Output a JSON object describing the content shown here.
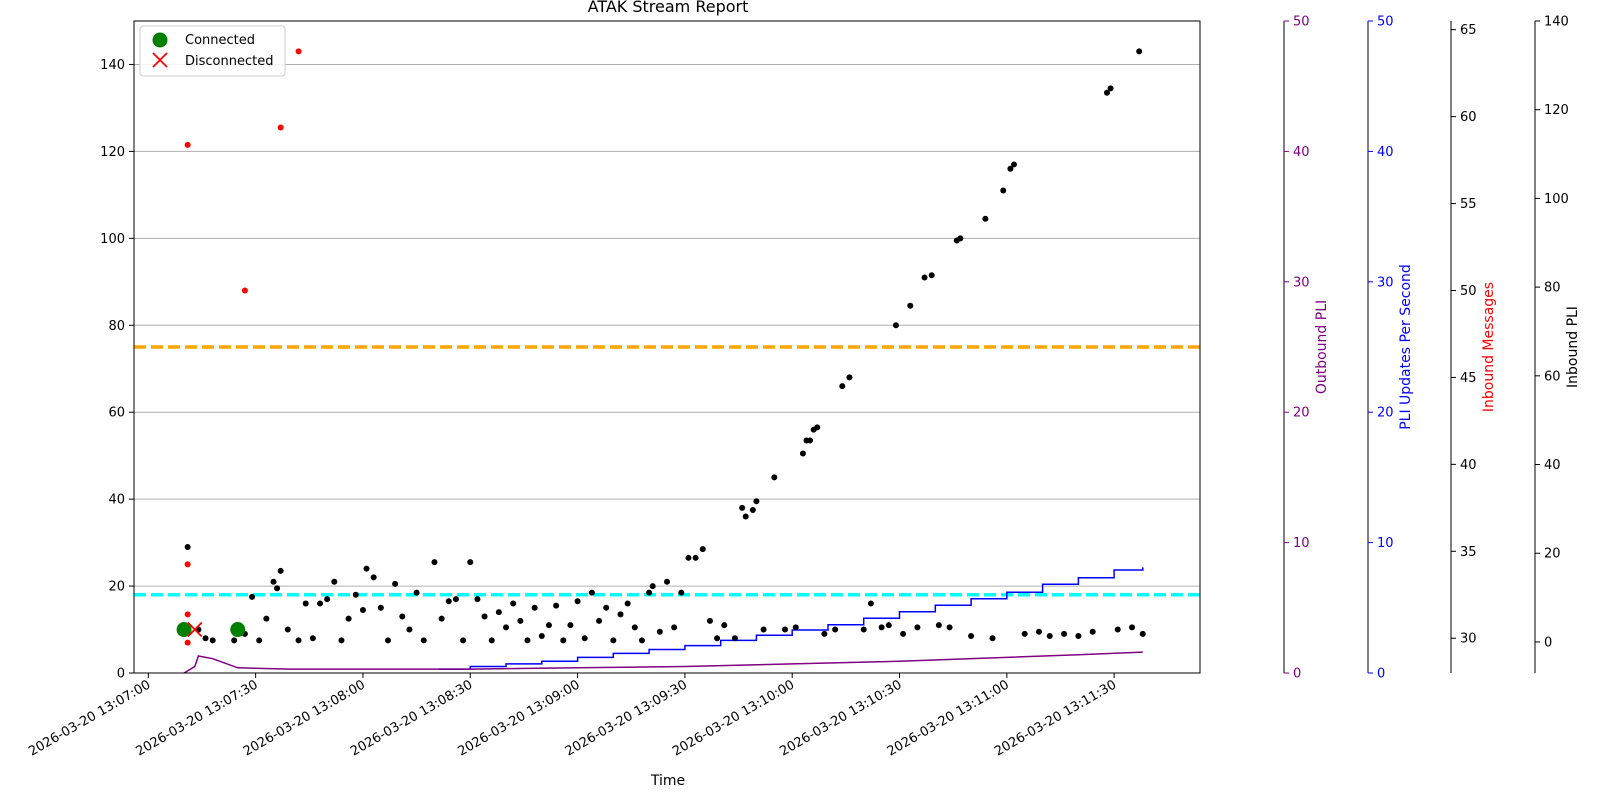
{
  "chart_data": {
    "type": "scatter",
    "title": "ATAK Stream Report",
    "xlabel": "Time",
    "ylabel": "",
    "x_ticks": [
      "2026-03-20 13:07:00",
      "2026-03-20 13:07:30",
      "2026-03-20 13:08:00",
      "2026-03-20 13:08:30",
      "2026-03-20 13:09:00",
      "2026-03-20 13:09:30",
      "2026-03-20 13:10:00",
      "2026-03-20 13:10:30",
      "2026-03-20 13:11:00",
      "2026-03-20 13:11:30"
    ],
    "xlim": [
      "2026-03-20 13:06:56",
      "2026-03-20 13:11:54"
    ],
    "ylim": [
      0,
      150
    ],
    "y_ticks": [
      0,
      20,
      40,
      60,
      80,
      100,
      120,
      140
    ],
    "grid": "horizontal",
    "legend": {
      "placement": "top-left",
      "entries": [
        {
          "label": "Connected",
          "marker": "circle",
          "color": "#008000"
        },
        {
          "label": "Disconnected",
          "marker": "x",
          "color": "#ff0000"
        }
      ]
    },
    "reference_lines": [
      {
        "y": 75,
        "color": "#ffa500",
        "style": "dashed"
      },
      {
        "y": 18,
        "color": "#00ffff",
        "style": "dashed"
      }
    ],
    "connection_events": [
      {
        "x": "2026-03-20 13:07:10",
        "y": 10,
        "state": "Connected"
      },
      {
        "x": "2026-03-20 13:07:13",
        "y": 10,
        "state": "Disconnected"
      },
      {
        "x": "2026-03-20 13:07:25",
        "y": 10,
        "state": "Connected"
      }
    ],
    "series": [
      {
        "color": "#000000",
        "marker": "dot",
        "points": [
          [
            "2026-03-20 13:07:11",
            29
          ],
          [
            "2026-03-20 13:07:14",
            10
          ],
          [
            "2026-03-20 13:07:16",
            8
          ],
          [
            "2026-03-20 13:07:18",
            7.5
          ],
          [
            "2026-03-20 13:07:24",
            7.5
          ],
          [
            "2026-03-20 13:07:27",
            9
          ],
          [
            "2026-03-20 13:07:29",
            17.5
          ],
          [
            "2026-03-20 13:07:31",
            7.5
          ],
          [
            "2026-03-20 13:07:33",
            12.5
          ],
          [
            "2026-03-20 13:07:35",
            21
          ],
          [
            "2026-03-20 13:07:36",
            19.5
          ],
          [
            "2026-03-20 13:07:37",
            23.5
          ],
          [
            "2026-03-20 13:07:39",
            10
          ],
          [
            "2026-03-20 13:07:42",
            7.5
          ],
          [
            "2026-03-20 13:07:44",
            16
          ],
          [
            "2026-03-20 13:07:46",
            8
          ],
          [
            "2026-03-20 13:07:48",
            16
          ],
          [
            "2026-03-20 13:07:50",
            17
          ],
          [
            "2026-03-20 13:07:52",
            21
          ],
          [
            "2026-03-20 13:07:54",
            7.5
          ],
          [
            "2026-03-20 13:07:56",
            12.5
          ],
          [
            "2026-03-20 13:07:58",
            18
          ],
          [
            "2026-03-20 13:08:00",
            14.5
          ],
          [
            "2026-03-20 13:08:01",
            24
          ],
          [
            "2026-03-20 13:08:03",
            22
          ],
          [
            "2026-03-20 13:08:05",
            15
          ],
          [
            "2026-03-20 13:08:07",
            7.5
          ],
          [
            "2026-03-20 13:08:09",
            20.5
          ],
          [
            "2026-03-20 13:08:11",
            13
          ],
          [
            "2026-03-20 13:08:13",
            10
          ],
          [
            "2026-03-20 13:08:15",
            18.5
          ],
          [
            "2026-03-20 13:08:17",
            7.5
          ],
          [
            "2026-03-20 13:08:20",
            25.5
          ],
          [
            "2026-03-20 13:08:22",
            12.5
          ],
          [
            "2026-03-20 13:08:24",
            16.5
          ],
          [
            "2026-03-20 13:08:26",
            17
          ],
          [
            "2026-03-20 13:08:28",
            7.5
          ],
          [
            "2026-03-20 13:08:30",
            25.5
          ],
          [
            "2026-03-20 13:08:32",
            17
          ],
          [
            "2026-03-20 13:08:34",
            13
          ],
          [
            "2026-03-20 13:08:36",
            7.5
          ],
          [
            "2026-03-20 13:08:38",
            14
          ],
          [
            "2026-03-20 13:08:40",
            10.5
          ],
          [
            "2026-03-20 13:08:42",
            16
          ],
          [
            "2026-03-20 13:08:44",
            12
          ],
          [
            "2026-03-20 13:08:46",
            7.5
          ],
          [
            "2026-03-20 13:08:48",
            15
          ],
          [
            "2026-03-20 13:08:50",
            8.5
          ],
          [
            "2026-03-20 13:08:52",
            11
          ],
          [
            "2026-03-20 13:08:54",
            15.5
          ],
          [
            "2026-03-20 13:08:56",
            7.5
          ],
          [
            "2026-03-20 13:08:58",
            11
          ],
          [
            "2026-03-20 13:09:00",
            16.5
          ],
          [
            "2026-03-20 13:09:02",
            8
          ],
          [
            "2026-03-20 13:09:04",
            18.5
          ],
          [
            "2026-03-20 13:09:06",
            12
          ],
          [
            "2026-03-20 13:09:08",
            15
          ],
          [
            "2026-03-20 13:09:10",
            7.5
          ],
          [
            "2026-03-20 13:09:12",
            13.5
          ],
          [
            "2026-03-20 13:09:14",
            16
          ],
          [
            "2026-03-20 13:09:16",
            10.5
          ],
          [
            "2026-03-20 13:09:18",
            7.5
          ],
          [
            "2026-03-20 13:09:20",
            18.5
          ],
          [
            "2026-03-20 13:09:21",
            20
          ],
          [
            "2026-03-20 13:09:23",
            9.5
          ],
          [
            "2026-03-20 13:09:25",
            21
          ],
          [
            "2026-03-20 13:09:27",
            10.5
          ],
          [
            "2026-03-20 13:09:29",
            18.5
          ],
          [
            "2026-03-20 13:09:31",
            26.5
          ],
          [
            "2026-03-20 13:09:33",
            26.5
          ],
          [
            "2026-03-20 13:09:35",
            28.5
          ],
          [
            "2026-03-20 13:09:37",
            12
          ],
          [
            "2026-03-20 13:09:39",
            8
          ],
          [
            "2026-03-20 13:09:41",
            11
          ],
          [
            "2026-03-20 13:09:44",
            8
          ],
          [
            "2026-03-20 13:09:46",
            38
          ],
          [
            "2026-03-20 13:09:47",
            36
          ],
          [
            "2026-03-20 13:09:49",
            37.5
          ],
          [
            "2026-03-20 13:09:50",
            39.5
          ],
          [
            "2026-03-20 13:09:52",
            10
          ],
          [
            "2026-03-20 13:09:55",
            45
          ],
          [
            "2026-03-20 13:09:58",
            10
          ],
          [
            "2026-03-20 13:10:01",
            10.5
          ],
          [
            "2026-03-20 13:10:03",
            50.5
          ],
          [
            "2026-03-20 13:10:04",
            53.5
          ],
          [
            "2026-03-20 13:10:05",
            53.5
          ],
          [
            "2026-03-20 13:10:06",
            56
          ],
          [
            "2026-03-20 13:10:07",
            56.5
          ],
          [
            "2026-03-20 13:10:09",
            9
          ],
          [
            "2026-03-20 13:10:12",
            10
          ],
          [
            "2026-03-20 13:10:14",
            66
          ],
          [
            "2026-03-20 13:10:16",
            68
          ],
          [
            "2026-03-20 13:10:20",
            10
          ],
          [
            "2026-03-20 13:10:22",
            16
          ],
          [
            "2026-03-20 13:10:25",
            10.5
          ],
          [
            "2026-03-20 13:10:27",
            11
          ],
          [
            "2026-03-20 13:10:29",
            80
          ],
          [
            "2026-03-20 13:10:31",
            9
          ],
          [
            "2026-03-20 13:10:33",
            84.5
          ],
          [
            "2026-03-20 13:10:35",
            10.5
          ],
          [
            "2026-03-20 13:10:37",
            91
          ],
          [
            "2026-03-20 13:10:39",
            91.5
          ],
          [
            "2026-03-20 13:10:41",
            11
          ],
          [
            "2026-03-20 13:10:44",
            10.5
          ],
          [
            "2026-03-20 13:10:46",
            99.5
          ],
          [
            "2026-03-20 13:10:47",
            100
          ],
          [
            "2026-03-20 13:10:50",
            8.5
          ],
          [
            "2026-03-20 13:10:54",
            104.5
          ],
          [
            "2026-03-20 13:10:56",
            8
          ],
          [
            "2026-03-20 13:10:59",
            111
          ],
          [
            "2026-03-20 13:11:01",
            116
          ],
          [
            "2026-03-20 13:11:02",
            117
          ],
          [
            "2026-03-20 13:11:05",
            9
          ],
          [
            "2026-03-20 13:11:09",
            9.5
          ],
          [
            "2026-03-20 13:11:12",
            8.5
          ],
          [
            "2026-03-20 13:11:16",
            9
          ],
          [
            "2026-03-20 13:11:20",
            8.5
          ],
          [
            "2026-03-20 13:11:24",
            9.5
          ],
          [
            "2026-03-20 13:11:28",
            133.5
          ],
          [
            "2026-03-20 13:11:29",
            134.5
          ],
          [
            "2026-03-20 13:11:31",
            10
          ],
          [
            "2026-03-20 13:11:35",
            10.5
          ],
          [
            "2026-03-20 13:11:37",
            143
          ],
          [
            "2026-03-20 13:11:38",
            9
          ]
        ]
      },
      {
        "color": "#ff0000",
        "marker": "dot",
        "points": [
          [
            "2026-03-20 13:07:11",
            7
          ],
          [
            "2026-03-20 13:07:11",
            121.5
          ],
          [
            "2026-03-20 13:07:11",
            25
          ],
          [
            "2026-03-20 13:07:11",
            13.5
          ],
          [
            "2026-03-20 13:07:27",
            88
          ],
          [
            "2026-03-20 13:07:37",
            125.5
          ],
          [
            "2026-03-20 13:07:42",
            143
          ]
        ]
      },
      {
        "name": "PLI Updates Per Second",
        "color": "#0000ff",
        "axis": "PLI Updates Per Second",
        "style": "step",
        "points": [
          [
            "2026-03-20 13:08:21",
            0.3
          ],
          [
            "2026-03-20 13:08:30",
            0.5
          ],
          [
            "2026-03-20 13:08:40",
            0.7
          ],
          [
            "2026-03-20 13:08:50",
            0.9
          ],
          [
            "2026-03-20 13:09:00",
            1.2
          ],
          [
            "2026-03-20 13:09:10",
            1.5
          ],
          [
            "2026-03-20 13:09:20",
            1.8
          ],
          [
            "2026-03-20 13:09:30",
            2.1
          ],
          [
            "2026-03-20 13:09:40",
            2.5
          ],
          [
            "2026-03-20 13:09:50",
            2.9
          ],
          [
            "2026-03-20 13:10:00",
            3.3
          ],
          [
            "2026-03-20 13:10:10",
            3.7
          ],
          [
            "2026-03-20 13:10:20",
            4.2
          ],
          [
            "2026-03-20 13:10:30",
            4.7
          ],
          [
            "2026-03-20 13:10:40",
            5.2
          ],
          [
            "2026-03-20 13:10:50",
            5.7
          ],
          [
            "2026-03-20 13:11:00",
            6.2
          ],
          [
            "2026-03-20 13:11:10",
            6.8
          ],
          [
            "2026-03-20 13:11:20",
            7.3
          ],
          [
            "2026-03-20 13:11:30",
            7.9
          ],
          [
            "2026-03-20 13:11:38",
            8.1
          ]
        ]
      },
      {
        "name": "Outbound PLI",
        "color": "#800080",
        "axis": "Outbound PLI",
        "style": "line",
        "points": [
          [
            "2026-03-20 13:07:10",
            0
          ],
          [
            "2026-03-20 13:07:13",
            0.5
          ],
          [
            "2026-03-20 13:07:14",
            1.3
          ],
          [
            "2026-03-20 13:07:18",
            1.1
          ],
          [
            "2026-03-20 13:07:25",
            0.4
          ],
          [
            "2026-03-20 13:07:40",
            0.3
          ],
          [
            "2026-03-20 13:08:30",
            0.3
          ],
          [
            "2026-03-20 13:09:00",
            0.4
          ],
          [
            "2026-03-20 13:09:30",
            0.5
          ],
          [
            "2026-03-20 13:10:00",
            0.7
          ],
          [
            "2026-03-20 13:10:30",
            0.9
          ],
          [
            "2026-03-20 13:11:00",
            1.2
          ],
          [
            "2026-03-20 13:11:20",
            1.4
          ],
          [
            "2026-03-20 13:11:38",
            1.6
          ]
        ]
      }
    ],
    "secondary_axes": [
      {
        "label": "Outbound PLI",
        "color": "#800080",
        "ylim": [
          0,
          50
        ],
        "ticks": [
          0,
          10,
          20,
          30,
          40,
          50
        ]
      },
      {
        "label": "PLI Updates Per Second",
        "color": "#0000ff",
        "ylim": [
          0,
          50
        ],
        "ticks": [
          0,
          10,
          20,
          30,
          40,
          50
        ]
      },
      {
        "label": "Inbound Messages",
        "color": "#ff0000",
        "tick_color": "#000000",
        "ylim": [
          28,
          65.5
        ],
        "ticks": [
          30,
          35,
          40,
          45,
          50,
          55,
          60,
          65
        ]
      },
      {
        "label": "Inbound PLI",
        "color": "#000000",
        "ylim": [
          -7,
          140
        ],
        "ticks": [
          0,
          20,
          40,
          60,
          80,
          100,
          120,
          140
        ]
      }
    ]
  }
}
